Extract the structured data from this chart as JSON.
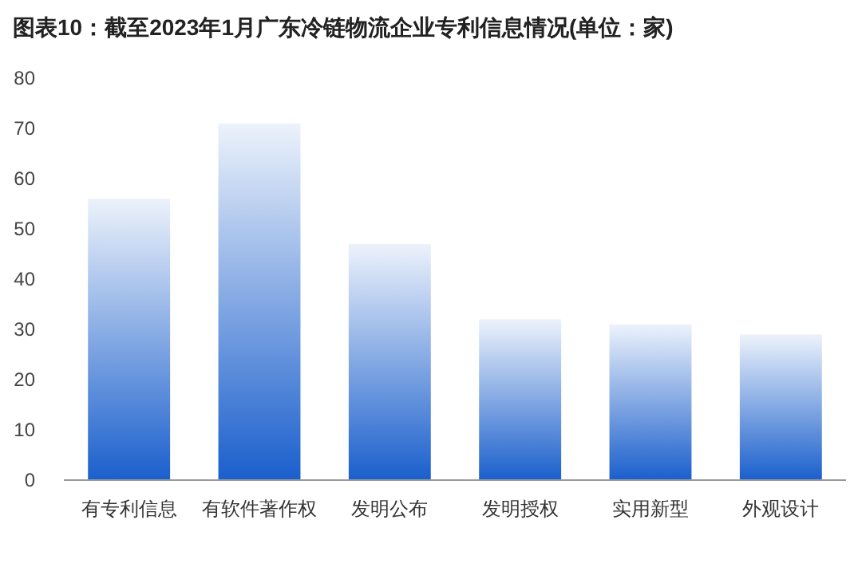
{
  "chart_data": {
    "type": "bar",
    "title": "图表10：截至2023年1月广东冷链物流企业专利信息情况(单位：家)",
    "categories": [
      "有专利信息",
      "有软件著作权",
      "发明公布",
      "发明授权",
      "实用新型",
      "外观设计"
    ],
    "values": [
      56,
      71,
      47,
      32,
      31,
      29
    ],
    "color": "#1a5fcc",
    "ylim": [
      0,
      80
    ],
    "yticks": [
      0,
      10,
      20,
      30,
      40,
      50,
      60,
      70,
      80
    ],
    "grid": false
  }
}
